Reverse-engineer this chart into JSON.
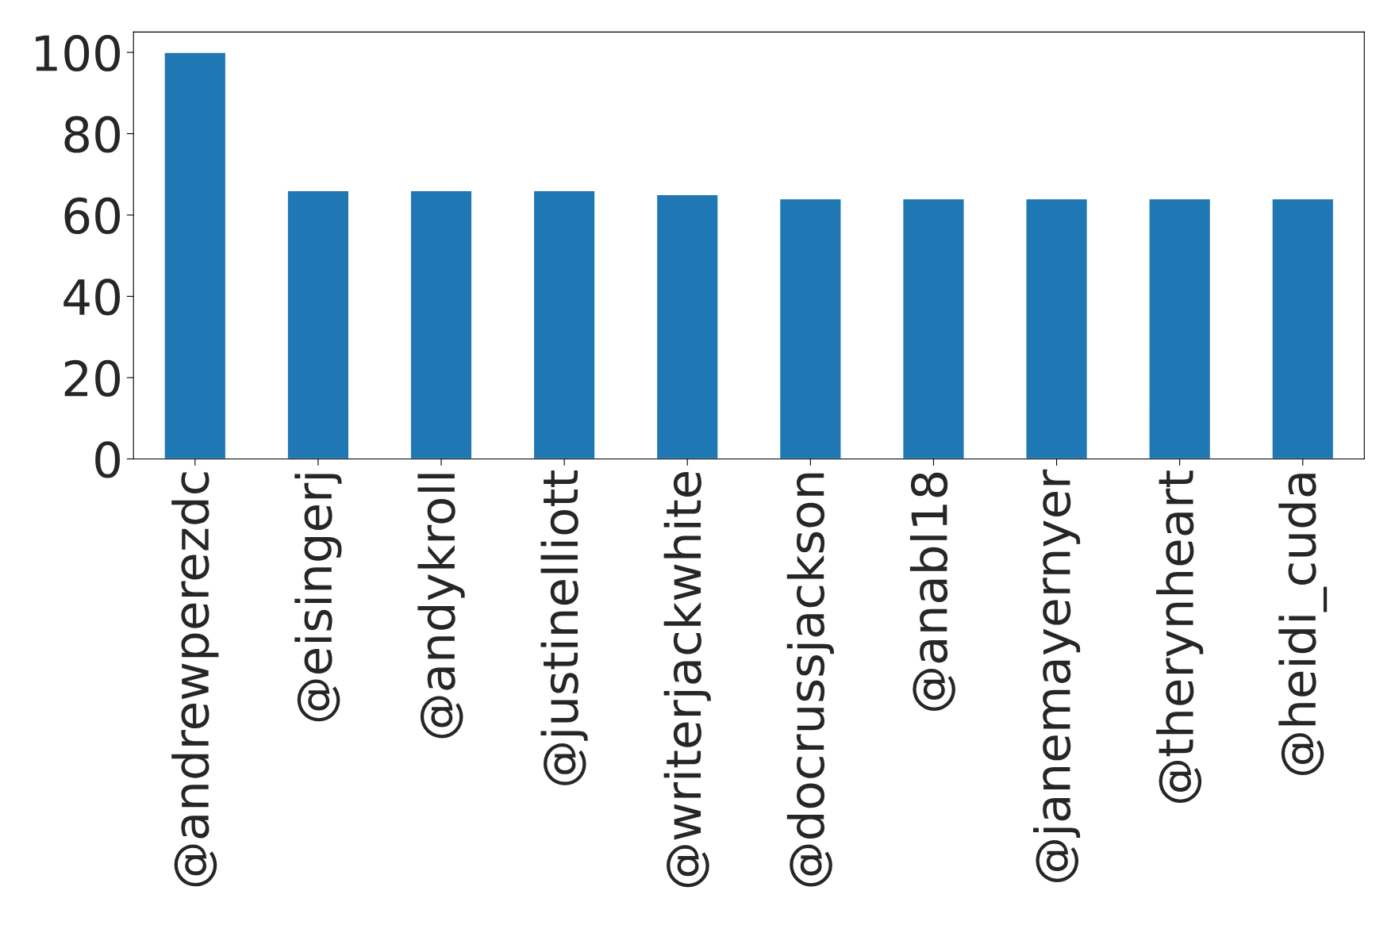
{
  "chart_data": {
    "type": "bar",
    "categories": [
      "@andrewperezdc",
      "@eisingerj",
      "@andykroll",
      "@justinelliott",
      "@writerjackwhite",
      "@docrussjackson",
      "@anabl18",
      "@janemayernyer",
      "@therynheart",
      "@heidi_cuda"
    ],
    "values": [
      100,
      66,
      66,
      66,
      65,
      64,
      64,
      64,
      64,
      64
    ],
    "color": "#1f77b4",
    "ylim": [
      0,
      105
    ],
    "yticks": [
      0,
      20,
      40,
      60,
      80,
      100
    ],
    "grid": false,
    "legend": false
  }
}
